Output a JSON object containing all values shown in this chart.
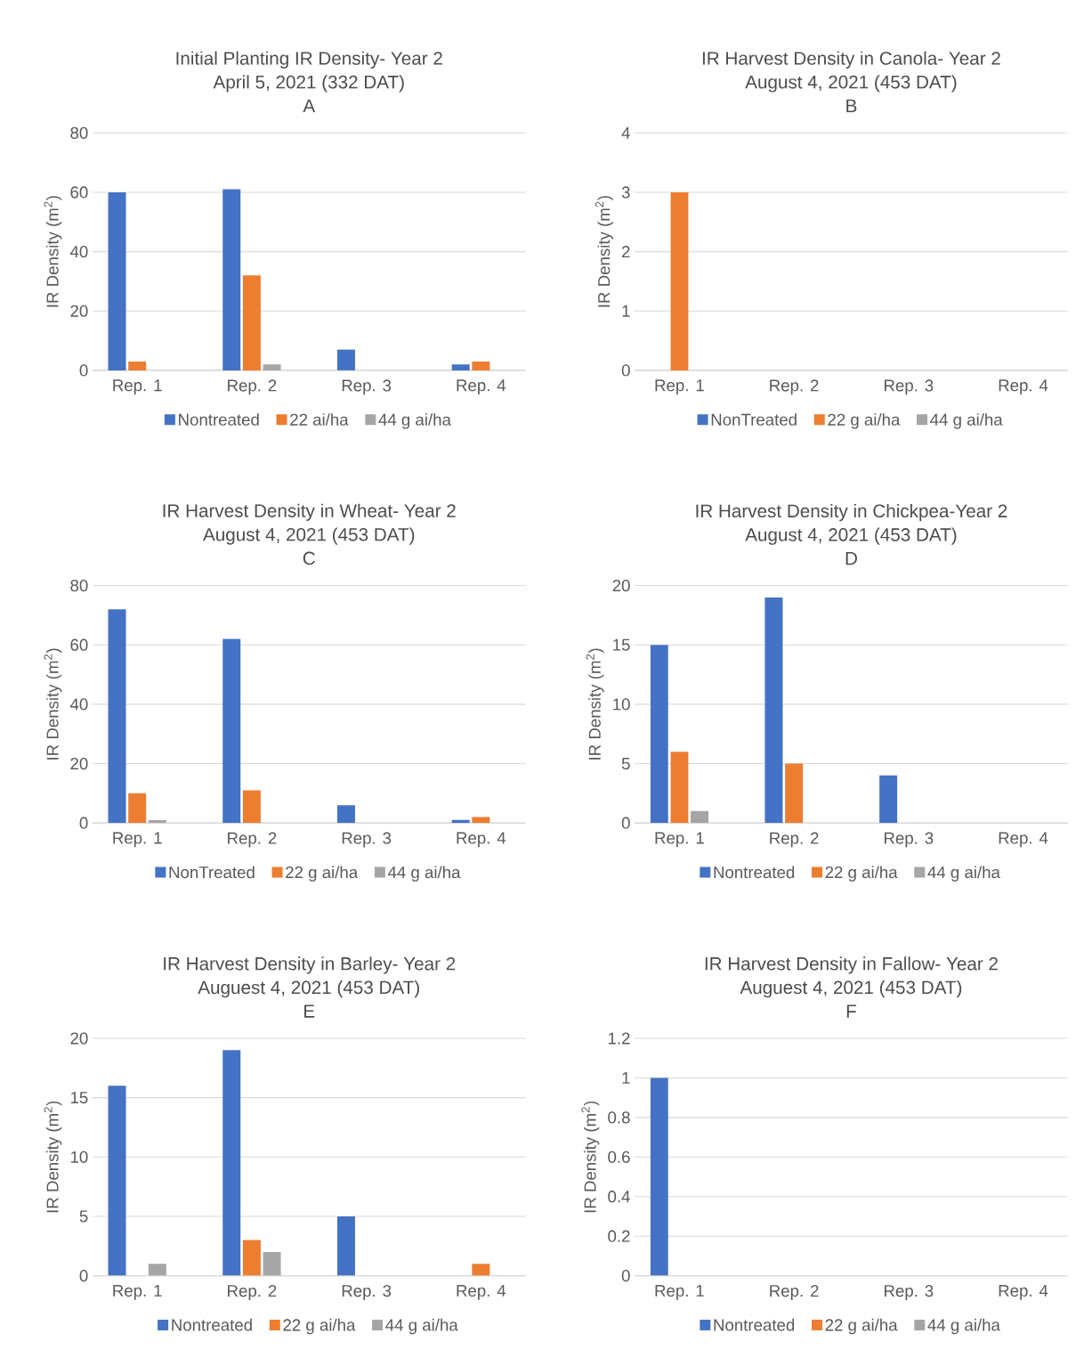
{
  "chart_data": [
    {
      "type": "bar",
      "title": "Initial Planting IR Density- Year 2",
      "subtitle": "April 5, 2021 (332 DAT)",
      "annotations": [
        "A"
      ],
      "ylabel": "IR Density (m$^{2}$)",
      "categories": [
        "Rep. 1",
        "Rep. 2",
        "Rep. 3",
        "Rep. 4"
      ],
      "series": [
        {
          "name": "Nontreated",
          "color": "#4472c4",
          "values": [
            60,
            61,
            7,
            2
          ]
        },
        {
          "name": "22  ai/ha",
          "color": "#ed7d31",
          "values": [
            3,
            32,
            0,
            3
          ]
        },
        {
          "name": "44 g ai/ha",
          "color": "#a5a5a5",
          "values": [
            0,
            2,
            0,
            0
          ]
        }
      ],
      "ylim": [
        0,
        80
      ],
      "yticks": [
        0,
        20,
        40,
        60,
        80
      ],
      "grid": "y",
      "legend": "bottom"
    },
    {
      "type": "bar",
      "title": "IR Harvest Density in Canola- Year 2",
      "subtitle": "August 4, 2021 (453 DAT)",
      "annotations": [
        "B"
      ],
      "ylabel": "IR Density (m$^{2}$)",
      "categories": [
        "Rep. 1",
        "Rep. 2",
        "Rep. 3",
        "Rep. 4"
      ],
      "series": [
        {
          "name": "NonTreated",
          "color": "#4472c4",
          "values": [
            0,
            0,
            0,
            0
          ]
        },
        {
          "name": "22 g ai/ha",
          "color": "#ed7d31",
          "values": [
            3,
            0,
            0,
            0
          ]
        },
        {
          "name": "44 g ai/ha",
          "color": "#a5a5a5",
          "values": [
            0,
            0,
            0,
            0
          ]
        }
      ],
      "ylim": [
        0,
        4
      ],
      "yticks": [
        0,
        1,
        2,
        3,
        4
      ],
      "grid": "y",
      "legend": "bottom"
    },
    {
      "type": "bar",
      "title": "IR Harvest Density in Wheat- Year 2",
      "subtitle": "August 4, 2021 (453 DAT)",
      "annotations": [
        "C"
      ],
      "ylabel": "IR Density (m$^{2}$)",
      "categories": [
        "Rep. 1",
        "Rep. 2",
        "Rep. 3",
        "Rep. 4"
      ],
      "series": [
        {
          "name": "NonTreated",
          "color": "#4472c4",
          "values": [
            72,
            62,
            6,
            1
          ]
        },
        {
          "name": "22 g ai/ha",
          "color": "#ed7d31",
          "values": [
            10,
            11,
            0,
            2
          ]
        },
        {
          "name": "44 g ai/ha",
          "color": "#a5a5a5",
          "values": [
            1,
            0,
            0,
            0
          ]
        }
      ],
      "ylim": [
        0,
        80
      ],
      "yticks": [
        0,
        20,
        40,
        60,
        80
      ],
      "grid": "y",
      "legend": "bottom"
    },
    {
      "type": "bar",
      "title": "IR Harvest Density in Chickpea-Year 2",
      "subtitle": "August 4, 2021 (453 DAT)",
      "annotations": [
        "D"
      ],
      "ylabel": "IR Density (m$^{2}$)",
      "categories": [
        "Rep. 1",
        "Rep. 2",
        "Rep. 3",
        "Rep. 4"
      ],
      "series": [
        {
          "name": "Nontreated",
          "color": "#4472c4",
          "values": [
            15,
            19,
            4,
            0
          ]
        },
        {
          "name": "22 g ai/ha",
          "color": "#ed7d31",
          "values": [
            6,
            5,
            0,
            0
          ]
        },
        {
          "name": "44 g ai/ha",
          "color": "#a5a5a5",
          "values": [
            1,
            0,
            0,
            0
          ]
        }
      ],
      "ylim": [
        0,
        20
      ],
      "yticks": [
        0,
        5,
        10,
        15,
        20
      ],
      "grid": "y",
      "legend": "bottom"
    },
    {
      "type": "bar",
      "title": "IR Harvest Density in Barley- Year 2",
      "subtitle": "Auguest 4, 2021 (453 DAT)",
      "annotations": [
        "E"
      ],
      "ylabel": "IR Density (m$^{2}$)",
      "categories": [
        "Rep. 1",
        "Rep. 2",
        "Rep. 3",
        "Rep. 4"
      ],
      "series": [
        {
          "name": "Nontreated",
          "color": "#4472c4",
          "values": [
            16,
            19,
            5,
            0
          ]
        },
        {
          "name": "22 g ai/ha",
          "color": "#ed7d31",
          "values": [
            0,
            3,
            0,
            1
          ]
        },
        {
          "name": "44 g ai/ha",
          "color": "#a5a5a5",
          "values": [
            1,
            2,
            0,
            0
          ]
        }
      ],
      "ylim": [
        0,
        20
      ],
      "yticks": [
        0,
        5,
        10,
        15,
        20
      ],
      "grid": "y",
      "legend": "bottom"
    },
    {
      "type": "bar",
      "title": "IR Harvest Density in Fallow- Year 2",
      "subtitle": "Auguest 4, 2021 (453 DAT)",
      "annotations": [
        "F"
      ],
      "ylabel": "IR Density (m$^{2}$)",
      "categories": [
        "Rep. 1",
        "Rep. 2",
        "Rep. 3",
        "Rep. 4"
      ],
      "series": [
        {
          "name": "Nontreated",
          "color": "#4472c4",
          "values": [
            1,
            0,
            0,
            0
          ]
        },
        {
          "name": "22 g ai/ha",
          "color": "#ed7d31",
          "values": [
            0,
            0,
            0,
            0
          ]
        },
        {
          "name": "44 g ai/ha",
          "color": "#a5a5a5",
          "values": [
            0,
            0,
            0,
            0
          ]
        }
      ],
      "ylim": [
        0,
        1.2
      ],
      "yticks": [
        0,
        0.2,
        0.4,
        0.6,
        0.8,
        1,
        1.2
      ],
      "grid": "y",
      "legend": "bottom"
    }
  ]
}
